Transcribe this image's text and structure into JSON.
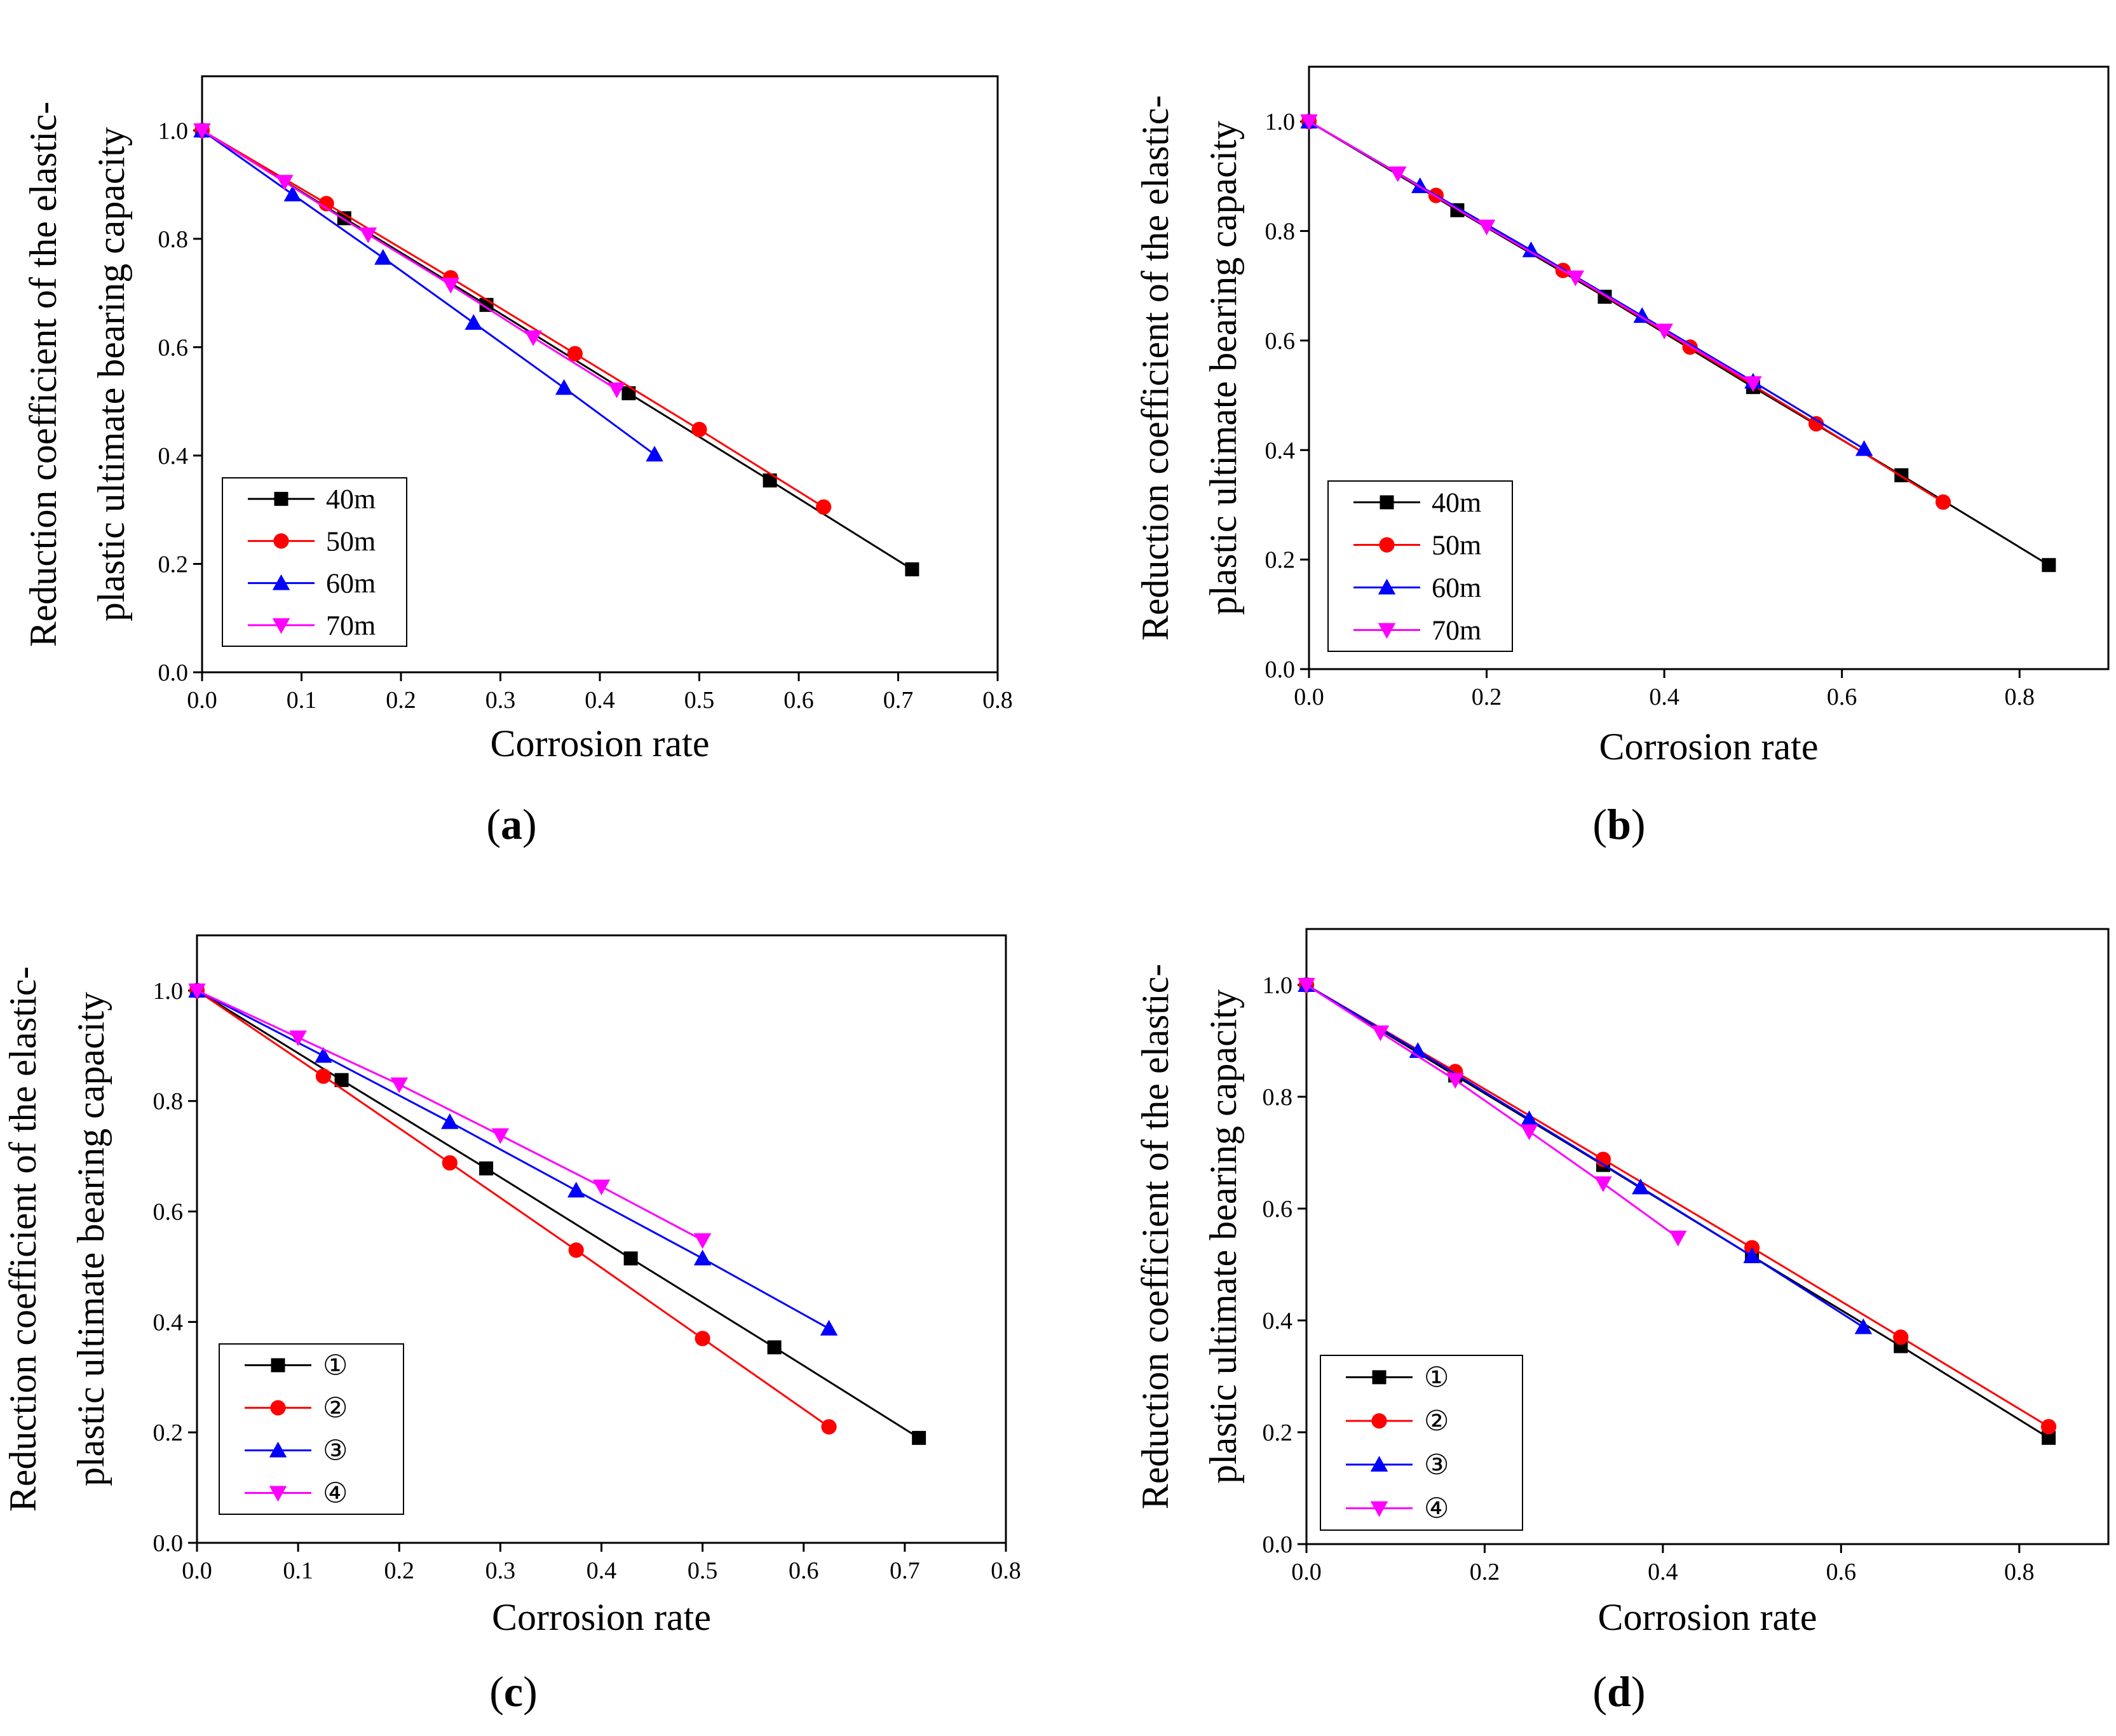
{
  "chart_data": [
    {
      "type": "line",
      "panel_label": "a",
      "xlabel": "Corrosion rate",
      "ylabel_lines": [
        "Reduction coefficient of the elastic-",
        "plastic ultimate bearing capacity"
      ],
      "xlim": [
        0,
        0.8
      ],
      "ylim": [
        0,
        1.1
      ],
      "xticks": [
        "0.0",
        "0.1",
        "0.2",
        "0.3",
        "0.4",
        "0.5",
        "0.6",
        "0.7",
        "0.8"
      ],
      "yticks": [
        "0.0",
        "0.2",
        "0.4",
        "0.6",
        "0.8",
        "1.0"
      ],
      "legend_position": "bottom-left",
      "series": [
        {
          "name": "40m",
          "color": "#000000",
          "marker": "square",
          "x": [
            0,
            0.143,
            0.286,
            0.429,
            0.571,
            0.714
          ],
          "y": [
            1.0,
            0.838,
            0.678,
            0.515,
            0.354,
            0.19
          ]
        },
        {
          "name": "50m",
          "color": "#ff0000",
          "marker": "circle",
          "x": [
            0,
            0.125,
            0.25,
            0.375,
            0.5,
            0.625
          ],
          "y": [
            1.0,
            0.865,
            0.728,
            0.588,
            0.448,
            0.305
          ]
        },
        {
          "name": "60m",
          "color": "#0000ff",
          "marker": "triangle-up",
          "x": [
            0,
            0.091,
            0.182,
            0.273,
            0.364,
            0.455
          ],
          "y": [
            1.0,
            0.882,
            0.765,
            0.645,
            0.525,
            0.402
          ]
        },
        {
          "name": "70m",
          "color": "#ff00ff",
          "marker": "triangle-down",
          "x": [
            0,
            0.083,
            0.167,
            0.25,
            0.333,
            0.417
          ],
          "y": [
            1.0,
            0.905,
            0.808,
            0.715,
            0.618,
            0.522
          ]
        }
      ]
    },
    {
      "type": "line",
      "panel_label": "b",
      "xlabel": "Corrosion rate",
      "ylabel_lines": [
        "Reduction coefficient of the elastic-",
        "plastic ultimate bearing capacity"
      ],
      "xlim": [
        0,
        0.9
      ],
      "ylim": [
        0,
        1.1
      ],
      "xticks": [
        "0.0",
        "0.2",
        "0.4",
        "0.6",
        "0.8"
      ],
      "yticks": [
        "0.0",
        "0.2",
        "0.4",
        "0.6",
        "0.8",
        "1.0"
      ],
      "legend_position": "bottom-left",
      "series": [
        {
          "name": "40m",
          "color": "#000000",
          "marker": "square",
          "x": [
            0,
            0.167,
            0.333,
            0.5,
            0.667,
            0.833
          ],
          "y": [
            1.0,
            0.838,
            0.68,
            0.515,
            0.354,
            0.19
          ]
        },
        {
          "name": "50m",
          "color": "#ff0000",
          "marker": "circle",
          "x": [
            0,
            0.143,
            0.286,
            0.429,
            0.571,
            0.714
          ],
          "y": [
            1.0,
            0.865,
            0.728,
            0.588,
            0.448,
            0.305
          ]
        },
        {
          "name": "60m",
          "color": "#0000ff",
          "marker": "triangle-up",
          "x": [
            0,
            0.125,
            0.25,
            0.375,
            0.5,
            0.625
          ],
          "y": [
            1.0,
            0.882,
            0.765,
            0.645,
            0.525,
            0.402
          ]
        },
        {
          "name": "70m",
          "color": "#ff00ff",
          "marker": "triangle-down",
          "x": [
            0,
            0.1,
            0.2,
            0.3,
            0.4,
            0.5
          ],
          "y": [
            1.0,
            0.905,
            0.808,
            0.715,
            0.618,
            0.522
          ]
        }
      ]
    },
    {
      "type": "line",
      "panel_label": "c",
      "xlabel": "Corrosion rate",
      "ylabel_lines": [
        "Reduction coefficient of the elastic-",
        "plastic ultimate bearing capacity"
      ],
      "xlim": [
        0,
        0.8
      ],
      "ylim": [
        0,
        1.1
      ],
      "xticks": [
        "0.0",
        "0.1",
        "0.2",
        "0.3",
        "0.4",
        "0.5",
        "0.6",
        "0.7",
        "0.8"
      ],
      "yticks": [
        "0.0",
        "0.2",
        "0.4",
        "0.6",
        "0.8",
        "1.0"
      ],
      "legend_position": "bottom-left",
      "series": [
        {
          "name": "①",
          "color": "#000000",
          "marker": "square",
          "x": [
            0,
            0.143,
            0.286,
            0.429,
            0.571,
            0.714
          ],
          "y": [
            1.0,
            0.838,
            0.678,
            0.515,
            0.354,
            0.19
          ]
        },
        {
          "name": "②",
          "color": "#ff0000",
          "marker": "circle",
          "x": [
            0,
            0.125,
            0.25,
            0.375,
            0.5,
            0.625
          ],
          "y": [
            1.0,
            0.845,
            0.688,
            0.53,
            0.37,
            0.21
          ]
        },
        {
          "name": "③",
          "color": "#0000ff",
          "marker": "triangle-up",
          "x": [
            0,
            0.125,
            0.25,
            0.375,
            0.5,
            0.625
          ],
          "y": [
            1.0,
            0.882,
            0.762,
            0.638,
            0.515,
            0.388
          ]
        },
        {
          "name": "④",
          "color": "#ff00ff",
          "marker": "triangle-down",
          "x": [
            0,
            0.1,
            0.2,
            0.3,
            0.4,
            0.5
          ],
          "y": [
            1.0,
            0.915,
            0.83,
            0.738,
            0.645,
            0.548
          ]
        }
      ]
    },
    {
      "type": "line",
      "panel_label": "d",
      "xlabel": "Corrosion rate",
      "ylabel_lines": [
        "Reduction coefficient of the elastic-",
        "plastic ultimate bearing capacity"
      ],
      "xlim": [
        0,
        0.9
      ],
      "ylim": [
        0,
        1.1
      ],
      "xticks": [
        "0.0",
        "0.2",
        "0.4",
        "0.6",
        "0.8"
      ],
      "yticks": [
        "0.0",
        "0.2",
        "0.4",
        "0.6",
        "0.8",
        "1.0"
      ],
      "legend_position": "bottom-left",
      "series": [
        {
          "name": "①",
          "color": "#000000",
          "marker": "square",
          "x": [
            0,
            0.167,
            0.333,
            0.5,
            0.667,
            0.833
          ],
          "y": [
            1.0,
            0.838,
            0.678,
            0.515,
            0.354,
            0.19
          ]
        },
        {
          "name": "②",
          "color": "#ff0000",
          "marker": "circle",
          "x": [
            0,
            0.167,
            0.333,
            0.5,
            0.667,
            0.833
          ],
          "y": [
            1.0,
            0.845,
            0.688,
            0.53,
            0.37,
            0.21
          ]
        },
        {
          "name": "③",
          "color": "#0000ff",
          "marker": "triangle-up",
          "x": [
            0,
            0.125,
            0.25,
            0.375,
            0.5,
            0.625
          ],
          "y": [
            1.0,
            0.882,
            0.76,
            0.638,
            0.515,
            0.388
          ]
        },
        {
          "name": "④",
          "color": "#ff00ff",
          "marker": "triangle-down",
          "x": [
            0,
            0.083,
            0.167,
            0.25,
            0.333,
            0.417
          ],
          "y": [
            1.0,
            0.915,
            0.83,
            0.738,
            0.645,
            0.548
          ]
        }
      ]
    }
  ]
}
